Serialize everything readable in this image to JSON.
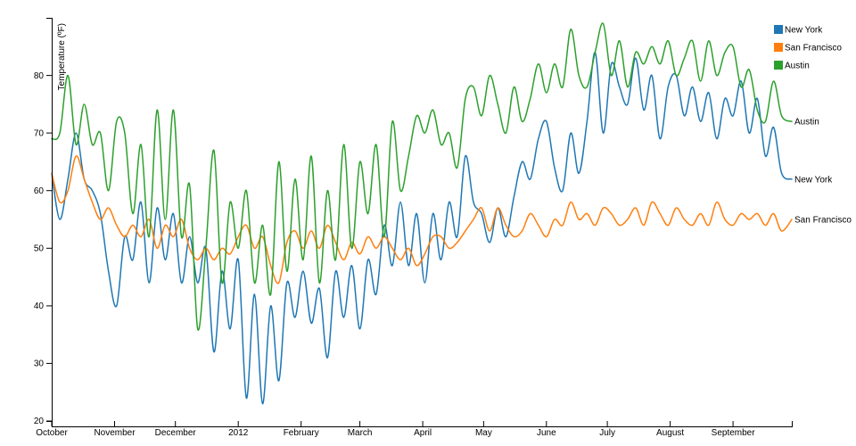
{
  "chart_data": {
    "type": "line",
    "title": "",
    "xlabel": "",
    "ylabel": "Temperature (ºF)",
    "ylim": [
      20,
      90
    ],
    "yticks": [
      20,
      30,
      40,
      50,
      60,
      70,
      80
    ],
    "xlim": [
      "2011-10-01",
      "2012-09-30"
    ],
    "xticks": [
      {
        "date": "2011-10-01",
        "label": "October"
      },
      {
        "date": "2011-11-01",
        "label": "November"
      },
      {
        "date": "2011-12-01",
        "label": "December"
      },
      {
        "date": "2012-01-01",
        "label": "2012"
      },
      {
        "date": "2012-02-01",
        "label": "February"
      },
      {
        "date": "2012-03-01",
        "label": "March"
      },
      {
        "date": "2012-04-01",
        "label": "April"
      },
      {
        "date": "2012-05-01",
        "label": "May"
      },
      {
        "date": "2012-06-01",
        "label": "June"
      },
      {
        "date": "2012-07-01",
        "label": "July"
      },
      {
        "date": "2012-08-01",
        "label": "August"
      },
      {
        "date": "2012-09-01",
        "label": "September"
      }
    ],
    "legend_position": "top-right",
    "grid": false,
    "series": [
      {
        "name": "New York",
        "color": "#1f77b4",
        "points": [
          [
            "2011-10-01",
            63
          ],
          [
            "2011-10-05",
            55
          ],
          [
            "2011-10-09",
            62
          ],
          [
            "2011-10-13",
            70
          ],
          [
            "2011-10-17",
            62
          ],
          [
            "2011-10-21",
            60
          ],
          [
            "2011-10-25",
            56
          ],
          [
            "2011-10-29",
            46
          ],
          [
            "2011-11-02",
            40
          ],
          [
            "2011-11-06",
            52
          ],
          [
            "2011-11-10",
            48
          ],
          [
            "2011-11-14",
            58
          ],
          [
            "2011-11-18",
            44
          ],
          [
            "2011-11-22",
            57
          ],
          [
            "2011-11-26",
            48
          ],
          [
            "2011-11-30",
            56
          ],
          [
            "2011-12-04",
            44
          ],
          [
            "2011-12-08",
            52
          ],
          [
            "2011-12-12",
            44
          ],
          [
            "2011-12-16",
            50
          ],
          [
            "2011-12-20",
            32
          ],
          [
            "2011-12-24",
            46
          ],
          [
            "2011-12-28",
            36
          ],
          [
            "2012-01-01",
            48
          ],
          [
            "2012-01-05",
            24
          ],
          [
            "2012-01-09",
            42
          ],
          [
            "2012-01-13",
            23
          ],
          [
            "2012-01-17",
            40
          ],
          [
            "2012-01-21",
            27
          ],
          [
            "2012-01-25",
            44
          ],
          [
            "2012-01-29",
            38
          ],
          [
            "2012-02-02",
            46
          ],
          [
            "2012-02-06",
            37
          ],
          [
            "2012-02-10",
            43
          ],
          [
            "2012-02-14",
            31
          ],
          [
            "2012-02-18",
            46
          ],
          [
            "2012-02-22",
            38
          ],
          [
            "2012-02-26",
            47
          ],
          [
            "2012-03-01",
            36
          ],
          [
            "2012-03-05",
            48
          ],
          [
            "2012-03-09",
            42
          ],
          [
            "2012-03-13",
            54
          ],
          [
            "2012-03-17",
            47
          ],
          [
            "2012-03-21",
            58
          ],
          [
            "2012-03-25",
            47
          ],
          [
            "2012-03-29",
            56
          ],
          [
            "2012-04-02",
            44
          ],
          [
            "2012-04-06",
            56
          ],
          [
            "2012-04-10",
            48
          ],
          [
            "2012-04-14",
            58
          ],
          [
            "2012-04-18",
            52
          ],
          [
            "2012-04-22",
            66
          ],
          [
            "2012-04-26",
            58
          ],
          [
            "2012-04-30",
            56
          ],
          [
            "2012-05-04",
            51
          ],
          [
            "2012-05-08",
            57
          ],
          [
            "2012-05-12",
            52
          ],
          [
            "2012-05-16",
            59
          ],
          [
            "2012-05-20",
            65
          ],
          [
            "2012-05-24",
            62
          ],
          [
            "2012-05-28",
            69
          ],
          [
            "2012-06-01",
            72
          ],
          [
            "2012-06-05",
            64
          ],
          [
            "2012-06-09",
            60
          ],
          [
            "2012-06-13",
            70
          ],
          [
            "2012-06-17",
            63
          ],
          [
            "2012-06-21",
            72
          ],
          [
            "2012-06-25",
            84
          ],
          [
            "2012-06-29",
            70
          ],
          [
            "2012-07-03",
            82
          ],
          [
            "2012-07-07",
            78
          ],
          [
            "2012-07-11",
            75
          ],
          [
            "2012-07-15",
            83
          ],
          [
            "2012-07-19",
            74
          ],
          [
            "2012-07-23",
            80
          ],
          [
            "2012-07-27",
            69
          ],
          [
            "2012-07-31",
            78
          ],
          [
            "2012-08-04",
            80
          ],
          [
            "2012-08-08",
            73
          ],
          [
            "2012-08-12",
            78
          ],
          [
            "2012-08-16",
            72
          ],
          [
            "2012-08-20",
            77
          ],
          [
            "2012-08-24",
            69
          ],
          [
            "2012-08-28",
            76
          ],
          [
            "2012-09-01",
            73
          ],
          [
            "2012-09-05",
            79
          ],
          [
            "2012-09-09",
            70
          ],
          [
            "2012-09-13",
            76
          ],
          [
            "2012-09-17",
            66
          ],
          [
            "2012-09-21",
            71
          ],
          [
            "2012-09-25",
            63
          ],
          [
            "2012-09-30",
            62
          ]
        ]
      },
      {
        "name": "San Francisco",
        "color": "#ff7f0e",
        "points": [
          [
            "2011-10-01",
            63
          ],
          [
            "2011-10-05",
            58
          ],
          [
            "2011-10-09",
            60
          ],
          [
            "2011-10-13",
            66
          ],
          [
            "2011-10-17",
            62
          ],
          [
            "2011-10-21",
            58
          ],
          [
            "2011-10-25",
            55
          ],
          [
            "2011-10-29",
            57
          ],
          [
            "2011-11-02",
            54
          ],
          [
            "2011-11-06",
            52
          ],
          [
            "2011-11-10",
            54
          ],
          [
            "2011-11-14",
            52
          ],
          [
            "2011-11-18",
            55
          ],
          [
            "2011-11-22",
            50
          ],
          [
            "2011-11-26",
            54
          ],
          [
            "2011-11-30",
            52
          ],
          [
            "2011-12-04",
            55
          ],
          [
            "2011-12-08",
            50
          ],
          [
            "2011-12-12",
            48
          ],
          [
            "2011-12-16",
            50
          ],
          [
            "2011-12-20",
            48
          ],
          [
            "2011-12-24",
            50
          ],
          [
            "2011-12-28",
            49
          ],
          [
            "2012-01-01",
            52
          ],
          [
            "2012-01-05",
            54
          ],
          [
            "2012-01-09",
            50
          ],
          [
            "2012-01-13",
            52
          ],
          [
            "2012-01-17",
            47
          ],
          [
            "2012-01-21",
            44
          ],
          [
            "2012-01-25",
            51
          ],
          [
            "2012-01-29",
            53
          ],
          [
            "2012-02-02",
            50
          ],
          [
            "2012-02-06",
            53
          ],
          [
            "2012-02-10",
            50
          ],
          [
            "2012-02-14",
            54
          ],
          [
            "2012-02-18",
            51
          ],
          [
            "2012-02-22",
            48
          ],
          [
            "2012-02-26",
            51
          ],
          [
            "2012-03-01",
            49
          ],
          [
            "2012-03-05",
            52
          ],
          [
            "2012-03-09",
            50
          ],
          [
            "2012-03-13",
            52
          ],
          [
            "2012-03-17",
            50
          ],
          [
            "2012-03-21",
            48
          ],
          [
            "2012-03-25",
            50
          ],
          [
            "2012-03-29",
            47
          ],
          [
            "2012-04-02",
            49
          ],
          [
            "2012-04-06",
            52
          ],
          [
            "2012-04-10",
            52
          ],
          [
            "2012-04-14",
            50
          ],
          [
            "2012-04-18",
            51
          ],
          [
            "2012-04-22",
            53
          ],
          [
            "2012-04-26",
            55
          ],
          [
            "2012-04-30",
            57
          ],
          [
            "2012-05-04",
            53
          ],
          [
            "2012-05-08",
            57
          ],
          [
            "2012-05-12",
            54
          ],
          [
            "2012-05-16",
            52
          ],
          [
            "2012-05-20",
            53
          ],
          [
            "2012-05-24",
            56
          ],
          [
            "2012-05-28",
            54
          ],
          [
            "2012-06-01",
            52
          ],
          [
            "2012-06-05",
            55
          ],
          [
            "2012-06-09",
            54
          ],
          [
            "2012-06-13",
            58
          ],
          [
            "2012-06-17",
            55
          ],
          [
            "2012-06-21",
            56
          ],
          [
            "2012-06-25",
            54
          ],
          [
            "2012-06-29",
            57
          ],
          [
            "2012-07-03",
            56
          ],
          [
            "2012-07-07",
            54
          ],
          [
            "2012-07-11",
            55
          ],
          [
            "2012-07-15",
            57
          ],
          [
            "2012-07-19",
            54
          ],
          [
            "2012-07-23",
            58
          ],
          [
            "2012-07-27",
            56
          ],
          [
            "2012-07-31",
            54
          ],
          [
            "2012-08-04",
            57
          ],
          [
            "2012-08-08",
            55
          ],
          [
            "2012-08-12",
            54
          ],
          [
            "2012-08-16",
            56
          ],
          [
            "2012-08-20",
            54
          ],
          [
            "2012-08-24",
            58
          ],
          [
            "2012-08-28",
            55
          ],
          [
            "2012-09-01",
            54
          ],
          [
            "2012-09-05",
            56
          ],
          [
            "2012-09-09",
            55
          ],
          [
            "2012-09-13",
            56
          ],
          [
            "2012-09-17",
            54
          ],
          [
            "2012-09-21",
            56
          ],
          [
            "2012-09-25",
            53
          ],
          [
            "2012-09-30",
            55
          ]
        ]
      },
      {
        "name": "Austin",
        "color": "#2ca02c",
        "points": [
          [
            "2011-10-01",
            69
          ],
          [
            "2011-10-05",
            70
          ],
          [
            "2011-10-09",
            80
          ],
          [
            "2011-10-13",
            68
          ],
          [
            "2011-10-17",
            75
          ],
          [
            "2011-10-21",
            68
          ],
          [
            "2011-10-25",
            70
          ],
          [
            "2011-10-29",
            60
          ],
          [
            "2011-11-02",
            72
          ],
          [
            "2011-11-06",
            70
          ],
          [
            "2011-11-10",
            56
          ],
          [
            "2011-11-14",
            68
          ],
          [
            "2011-11-18",
            52
          ],
          [
            "2011-11-22",
            74
          ],
          [
            "2011-11-26",
            55
          ],
          [
            "2011-11-30",
            74
          ],
          [
            "2011-12-04",
            52
          ],
          [
            "2011-12-08",
            61
          ],
          [
            "2011-12-12",
            36
          ],
          [
            "2011-12-16",
            50
          ],
          [
            "2011-12-20",
            67
          ],
          [
            "2011-12-24",
            44
          ],
          [
            "2011-12-28",
            58
          ],
          [
            "2012-01-01",
            50
          ],
          [
            "2012-01-05",
            60
          ],
          [
            "2012-01-09",
            44
          ],
          [
            "2012-01-13",
            54
          ],
          [
            "2012-01-17",
            42
          ],
          [
            "2012-01-21",
            65
          ],
          [
            "2012-01-25",
            46
          ],
          [
            "2012-01-29",
            62
          ],
          [
            "2012-02-02",
            48
          ],
          [
            "2012-02-06",
            66
          ],
          [
            "2012-02-10",
            44
          ],
          [
            "2012-02-14",
            60
          ],
          [
            "2012-02-18",
            48
          ],
          [
            "2012-02-22",
            68
          ],
          [
            "2012-02-26",
            50
          ],
          [
            "2012-03-01",
            65
          ],
          [
            "2012-03-05",
            56
          ],
          [
            "2012-03-09",
            68
          ],
          [
            "2012-03-13",
            52
          ],
          [
            "2012-03-17",
            72
          ],
          [
            "2012-03-21",
            60
          ],
          [
            "2012-03-25",
            66
          ],
          [
            "2012-03-29",
            73
          ],
          [
            "2012-04-02",
            70
          ],
          [
            "2012-04-06",
            74
          ],
          [
            "2012-04-10",
            68
          ],
          [
            "2012-04-14",
            70
          ],
          [
            "2012-04-18",
            64
          ],
          [
            "2012-04-22",
            76
          ],
          [
            "2012-04-26",
            78
          ],
          [
            "2012-04-30",
            73
          ],
          [
            "2012-05-04",
            80
          ],
          [
            "2012-05-08",
            75
          ],
          [
            "2012-05-12",
            70
          ],
          [
            "2012-05-16",
            78
          ],
          [
            "2012-05-20",
            72
          ],
          [
            "2012-05-24",
            76
          ],
          [
            "2012-05-28",
            82
          ],
          [
            "2012-06-01",
            77
          ],
          [
            "2012-06-05",
            82
          ],
          [
            "2012-06-09",
            78
          ],
          [
            "2012-06-13",
            88
          ],
          [
            "2012-06-17",
            80
          ],
          [
            "2012-06-21",
            78
          ],
          [
            "2012-06-25",
            84
          ],
          [
            "2012-06-29",
            89
          ],
          [
            "2012-07-03",
            80
          ],
          [
            "2012-07-07",
            86
          ],
          [
            "2012-07-11",
            78
          ],
          [
            "2012-07-15",
            84
          ],
          [
            "2012-07-19",
            82
          ],
          [
            "2012-07-23",
            85
          ],
          [
            "2012-07-27",
            82
          ],
          [
            "2012-07-31",
            86
          ],
          [
            "2012-08-04",
            80
          ],
          [
            "2012-08-08",
            83
          ],
          [
            "2012-08-12",
            86
          ],
          [
            "2012-08-16",
            79
          ],
          [
            "2012-08-20",
            86
          ],
          [
            "2012-08-24",
            80
          ],
          [
            "2012-08-28",
            84
          ],
          [
            "2012-09-01",
            85
          ],
          [
            "2012-09-05",
            78
          ],
          [
            "2012-09-09",
            81
          ],
          [
            "2012-09-13",
            74
          ],
          [
            "2012-09-17",
            72
          ],
          [
            "2012-09-21",
            79
          ],
          [
            "2012-09-25",
            73
          ],
          [
            "2012-09-30",
            72
          ]
        ]
      }
    ]
  }
}
